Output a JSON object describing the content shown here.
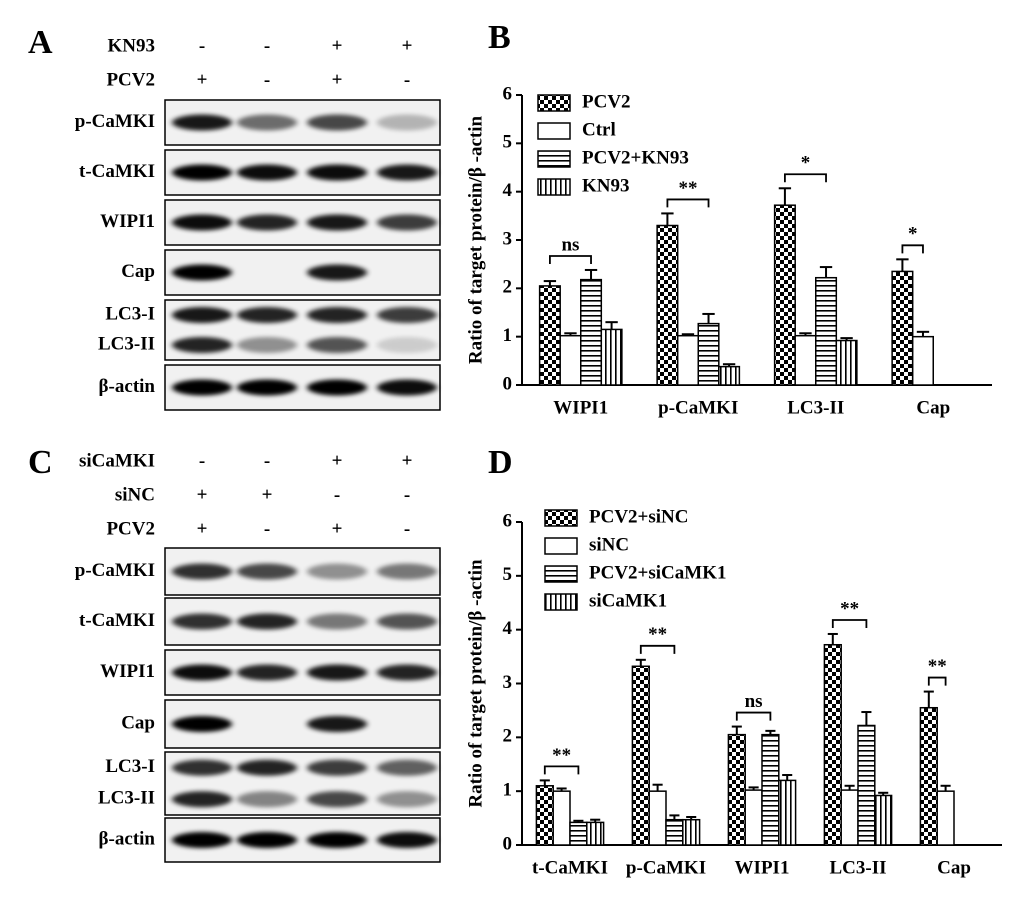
{
  "panels": [
    {
      "label": "A",
      "conditions": [
        {
          "name": "KN93",
          "marks": [
            "-",
            "-",
            "+",
            "+"
          ]
        },
        {
          "name": "PCV2",
          "marks": [
            "+",
            "-",
            "+",
            "-"
          ]
        }
      ],
      "blots": [
        [
          "p-CaMKI"
        ],
        [
          "t-CaMKI"
        ],
        [
          "WIPI1"
        ],
        [
          "Cap"
        ],
        [
          "LC3-I",
          "LC3-II"
        ],
        [
          "β-actin"
        ]
      ]
    },
    {
      "label": "C",
      "conditions": [
        {
          "name": "siCaMKI",
          "marks": [
            "-",
            "-",
            "+",
            "+"
          ]
        },
        {
          "name": "siNC",
          "marks": [
            "+",
            "+",
            "-",
            "-"
          ]
        },
        {
          "name": "PCV2",
          "marks": [
            "+",
            "-",
            "+",
            "-"
          ]
        }
      ],
      "blots": [
        [
          "p-CaMKI"
        ],
        [
          "t-CaMKI"
        ],
        [
          "WIPI1"
        ],
        [
          "Cap"
        ],
        [
          "LC3-I",
          "LC3-II"
        ],
        [
          "β-actin"
        ]
      ]
    }
  ],
  "chart_data": [
    {
      "type": "bar",
      "panel_label": "B",
      "y_label": "Ratio of target protein/β -actin",
      "categories": [
        "WIPI1",
        "p-CaMKI",
        "LC3-II",
        "Cap"
      ],
      "ylim": [
        0,
        6
      ],
      "yticks": [
        0,
        1,
        2,
        3,
        4,
        5,
        6
      ],
      "legend": "upper left",
      "series": [
        {
          "name": "PCV2",
          "pattern": "checker",
          "values": [
            2.05,
            3.3,
            3.72,
            2.35
          ],
          "errors": [
            0.1,
            0.25,
            0.35,
            0.25
          ]
        },
        {
          "name": "Ctrl",
          "pattern": "none",
          "values": [
            1.02,
            1.02,
            1.02,
            1.0
          ],
          "errors": [
            0.05,
            0.03,
            0.05,
            0.1
          ]
        },
        {
          "name": "PCV2+KN93",
          "pattern": "horizontal",
          "values": [
            2.18,
            1.27,
            2.22,
            null
          ],
          "errors": [
            0.2,
            0.2,
            0.22,
            null
          ]
        },
        {
          "name": "KN93",
          "pattern": "vertical",
          "values": [
            1.15,
            0.38,
            0.92,
            null
          ],
          "errors": [
            0.15,
            0.05,
            0.05,
            null
          ]
        }
      ],
      "annotations": [
        "ns",
        "**",
        "*",
        "*"
      ]
    },
    {
      "type": "bar",
      "panel_label": "D",
      "y_label": "Ratio of target protein/β -actin",
      "categories": [
        "t-CaMKI",
        "p-CaMKI",
        "WIPI1",
        "LC3-II",
        "Cap"
      ],
      "ylim": [
        0,
        6
      ],
      "yticks": [
        0,
        1,
        2,
        3,
        4,
        5,
        6
      ],
      "legend": "upper left",
      "series": [
        {
          "name": "PCV2+siNC",
          "pattern": "checker",
          "values": [
            1.1,
            3.32,
            2.05,
            3.72,
            2.55
          ],
          "errors": [
            0.1,
            0.12,
            0.15,
            0.2,
            0.3
          ]
        },
        {
          "name": "siNC",
          "pattern": "none",
          "values": [
            1.0,
            1.0,
            1.02,
            1.02,
            1.0
          ],
          "errors": [
            0.05,
            0.12,
            0.05,
            0.08,
            0.1
          ]
        },
        {
          "name": "PCV2+siCaMK1",
          "pattern": "horizontal",
          "values": [
            0.42,
            0.47,
            2.05,
            2.22,
            null
          ],
          "errors": [
            0.03,
            0.08,
            0.07,
            0.25,
            null
          ]
        },
        {
          "name": "siCaMK1",
          "pattern": "vertical",
          "values": [
            0.42,
            0.47,
            1.2,
            0.92,
            null
          ],
          "errors": [
            0.05,
            0.05,
            0.1,
            0.05,
            null
          ]
        }
      ],
      "annotations": [
        "**",
        "**",
        "ns",
        "**",
        "**"
      ]
    }
  ]
}
